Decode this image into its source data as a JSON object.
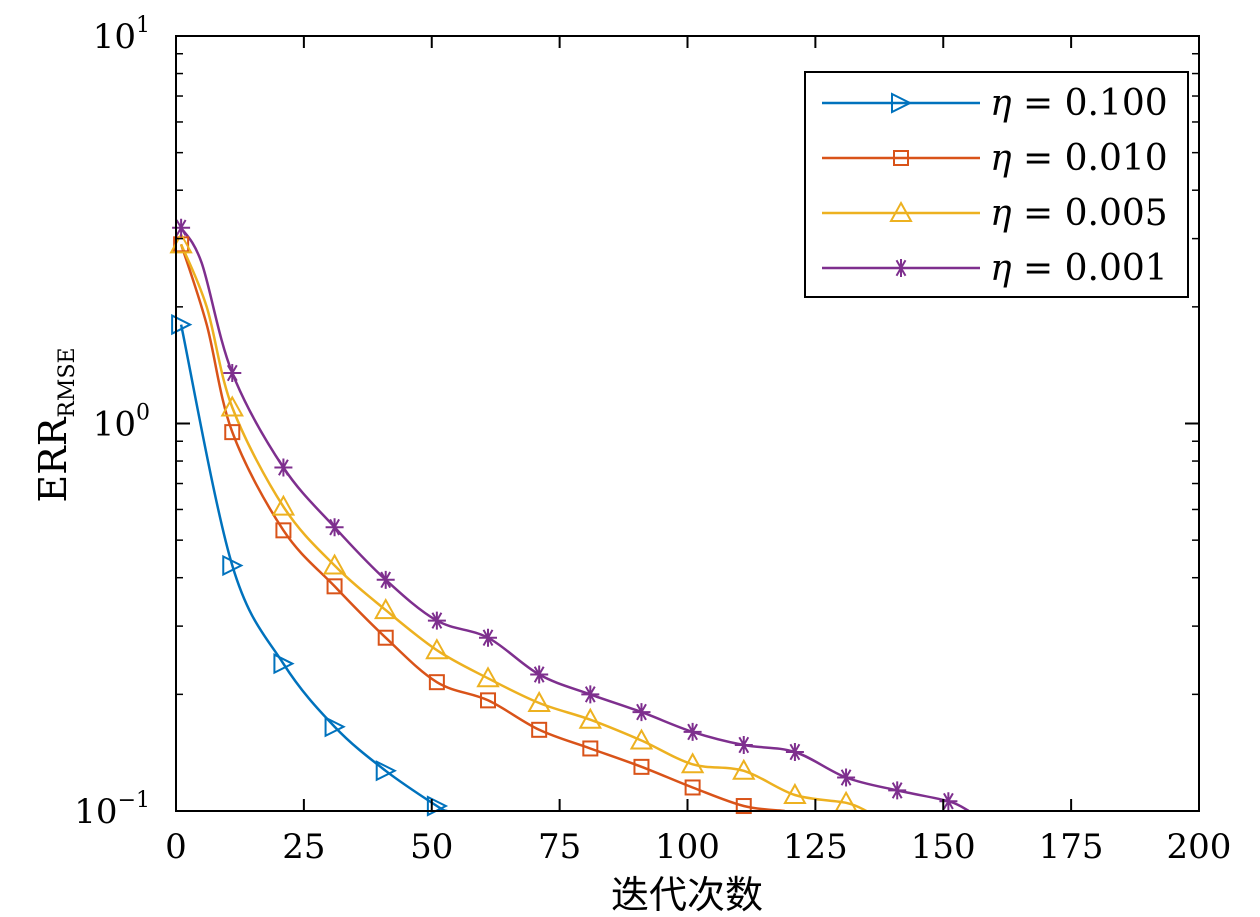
{
  "chart_data": {
    "type": "line",
    "xlabel": "迭代次数",
    "ylabel_main": "ERR",
    "ylabel_sub": "RMSE",
    "xlim": [
      0,
      200
    ],
    "ylim": [
      0.1,
      10
    ],
    "yscale": "log",
    "x_ticks": [
      0,
      25,
      50,
      75,
      100,
      125,
      150,
      175,
      200
    ],
    "x_tick_labels": [
      "0",
      "25",
      "50",
      "75",
      "100",
      "125",
      "150",
      "175",
      "200"
    ],
    "y_ticks": [
      {
        "value": 10,
        "base": "10",
        "exp": "1"
      },
      {
        "value": 1,
        "base": "10",
        "exp": "0"
      },
      {
        "value": 0.1,
        "base": "10",
        "exp": "−1"
      }
    ],
    "grid": false,
    "legend_position": "top-right",
    "series": [
      {
        "name": "η = 0.100",
        "legend_eta": "η",
        "legend_value": " = 0.100",
        "color": "#0072BD",
        "marker": "triangle-right",
        "x": [
          1,
          11,
          21,
          31,
          41,
          51,
          53
        ],
        "y": [
          1.8,
          0.43,
          0.24,
          0.165,
          0.127,
          0.103,
          0.1
        ],
        "marker_x": [
          1,
          11,
          21,
          31,
          41,
          51
        ],
        "marker_y": [
          1.8,
          0.43,
          0.24,
          0.165,
          0.127,
          0.103
        ]
      },
      {
        "name": "η = 0.010",
        "legend_eta": "η",
        "legend_value": " = 0.010",
        "color": "#D95319",
        "marker": "square",
        "x": [
          1,
          6,
          11,
          21,
          31,
          41,
          51,
          61,
          71,
          81,
          91,
          101,
          111,
          119
        ],
        "y": [
          2.9,
          1.8,
          0.95,
          0.53,
          0.38,
          0.28,
          0.215,
          0.193,
          0.162,
          0.145,
          0.13,
          0.115,
          0.103,
          0.1
        ],
        "marker_x": [
          1,
          11,
          21,
          31,
          41,
          51,
          61,
          71,
          81,
          91,
          101,
          111
        ],
        "marker_y": [
          2.9,
          0.95,
          0.53,
          0.38,
          0.28,
          0.215,
          0.193,
          0.162,
          0.145,
          0.13,
          0.115,
          0.103
        ]
      },
      {
        "name": "η = 0.005",
        "legend_eta": "η",
        "legend_value": " = 0.005",
        "color": "#EDB120",
        "marker": "triangle-up",
        "x": [
          1,
          6,
          11,
          21,
          31,
          41,
          51,
          61,
          71,
          81,
          91,
          101,
          111,
          121,
          131,
          135
        ],
        "y": [
          2.9,
          2.0,
          1.1,
          0.61,
          0.43,
          0.33,
          0.26,
          0.22,
          0.19,
          0.172,
          0.152,
          0.132,
          0.127,
          0.11,
          0.105,
          0.1
        ],
        "marker_x": [
          1,
          11,
          21,
          31,
          41,
          51,
          61,
          71,
          81,
          91,
          101,
          111,
          121,
          131
        ],
        "marker_y": [
          2.9,
          1.1,
          0.61,
          0.43,
          0.33,
          0.26,
          0.22,
          0.19,
          0.172,
          0.152,
          0.132,
          0.127,
          0.11,
          0.105
        ]
      },
      {
        "name": "η = 0.001",
        "legend_eta": "η",
        "legend_value": " = 0.001",
        "color": "#7E2F8E",
        "marker": "asterisk",
        "x": [
          1,
          5,
          11,
          21,
          31,
          41,
          51,
          61,
          71,
          81,
          91,
          101,
          111,
          121,
          131,
          141,
          151,
          155
        ],
        "y": [
          3.2,
          2.6,
          1.35,
          0.77,
          0.54,
          0.395,
          0.31,
          0.28,
          0.225,
          0.2,
          0.18,
          0.16,
          0.148,
          0.142,
          0.122,
          0.113,
          0.106,
          0.1
        ],
        "marker_x": [
          1,
          11,
          21,
          31,
          41,
          51,
          61,
          71,
          81,
          91,
          101,
          111,
          121,
          131,
          141,
          151
        ],
        "marker_y": [
          3.2,
          1.35,
          0.77,
          0.54,
          0.395,
          0.31,
          0.28,
          0.225,
          0.2,
          0.18,
          0.16,
          0.148,
          0.142,
          0.122,
          0.113,
          0.106
        ]
      }
    ]
  }
}
